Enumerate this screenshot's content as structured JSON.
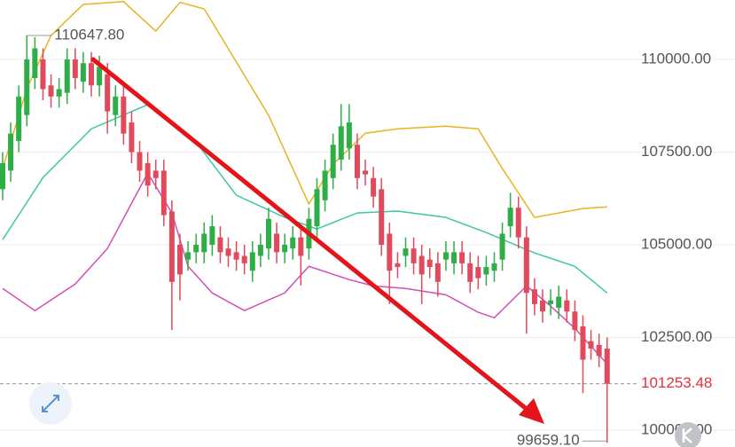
{
  "chart_data": {
    "type": "candlestick",
    "up_color": "#2fae47",
    "down_color": "#e04a5c",
    "ylim": [
      99545,
      111604
    ],
    "yticks": [
      {
        "value": 110000,
        "label": "110000.00"
      },
      {
        "value": 107500,
        "label": "107500.00"
      },
      {
        "value": 105000,
        "label": "105000.00"
      },
      {
        "value": 102500,
        "label": "102500.00"
      },
      {
        "value": 100000,
        "label": "100000.00"
      }
    ],
    "grid": true,
    "open": [
      106500,
      107000,
      107800,
      108500,
      109500,
      110000,
      109300,
      109000,
      109100,
      110000,
      109400,
      109900,
      109300,
      109600,
      108500,
      109000,
      108300,
      107500,
      107200,
      107000,
      107000,
      105900,
      105000,
      104600,
      104800,
      104800,
      105000,
      105200,
      104900,
      104800,
      104700,
      104300,
      104700,
      104900,
      105300,
      104800,
      104900,
      105200,
      104900,
      105500,
      106200,
      106800,
      107300,
      107600,
      107700,
      107000,
      106800,
      106500,
      105300,
      104500,
      104700,
      104900,
      104700,
      104600,
      104500,
      104600,
      104500,
      104800,
      104500,
      104400,
      104200,
      104300,
      104600,
      105500,
      106000,
      105200,
      103800,
      103500,
      103400,
      103300,
      103500,
      103200,
      102800,
      102400,
      102300,
      102200
    ],
    "high": [
      107500,
      108300,
      109300,
      110647.8,
      110600,
      110300,
      109600,
      109500,
      110300,
      110300,
      110200,
      110200,
      110100,
      109900,
      109300,
      109300,
      108600,
      107800,
      107500,
      107300,
      107300,
      106200,
      105300,
      105100,
      105300,
      105600,
      105800,
      105500,
      105200,
      105100,
      105000,
      105100,
      105300,
      106000,
      105600,
      105300,
      105500,
      105500,
      106000,
      106800,
      107300,
      108000,
      108800,
      108800,
      108000,
      107300,
      107100,
      106800,
      105600,
      104800,
      105200,
      105200,
      105000,
      104900,
      104800,
      105100,
      105100,
      105100,
      104800,
      104700,
      104700,
      104800,
      105600,
      106400,
      106300,
      105500,
      104100,
      103800,
      103800,
      103900,
      103800,
      103500,
      103100,
      102700,
      102600,
      102500
    ],
    "low": [
      106200,
      106700,
      107500,
      108200,
      109200,
      108900,
      108700,
      108700,
      108800,
      109200,
      109100,
      109000,
      109000,
      108000,
      108200,
      107700,
      107200,
      106700,
      106300,
      106500,
      105500,
      102700,
      103500,
      104300,
      104500,
      104500,
      104700,
      104500,
      104400,
      104300,
      104200,
      104000,
      104400,
      104600,
      104500,
      104500,
      104600,
      103900,
      104600,
      105200,
      105900,
      106500,
      107000,
      107300,
      106500,
      106600,
      106000,
      104700,
      103400,
      104100,
      104400,
      104200,
      103400,
      104100,
      103600,
      104300,
      104200,
      104200,
      103700,
      103800,
      103900,
      104000,
      104300,
      105200,
      104900,
      102600,
      103100,
      102900,
      103100,
      103000,
      102900,
      102400,
      101000,
      101900,
      101700,
      99659.1
    ],
    "close": [
      107200,
      108000,
      109000,
      110000,
      110300,
      109200,
      109000,
      109200,
      110000,
      109500,
      109900,
      109300,
      109800,
      108600,
      109000,
      108000,
      107500,
      107000,
      106600,
      106800,
      105800,
      104000,
      104200,
      104800,
      105000,
      105300,
      105500,
      104800,
      104700,
      104600,
      104500,
      104800,
      105000,
      105700,
      104800,
      105000,
      105200,
      104700,
      105700,
      106500,
      107000,
      107700,
      108200,
      108300,
      106800,
      106900,
      106300,
      105000,
      104300,
      104400,
      104900,
      104500,
      104200,
      104400,
      104000,
      104800,
      104800,
      104500,
      104000,
      104100,
      104400,
      104500,
      105300,
      106000,
      105200,
      103700,
      103400,
      103200,
      103500,
      103600,
      103200,
      102700,
      101900,
      102200,
      102000,
      101253.48
    ],
    "bands": [
      {
        "color": "#e6b422",
        "x": [
          0,
          3,
          6,
          10,
          15,
          19,
          22,
          25,
          29,
          33,
          36,
          38,
          41,
          45,
          49,
          55,
          59,
          62,
          66,
          69,
          72,
          75
        ],
        "values": [
          107055,
          109210,
          110645,
          111485,
          111560,
          110765,
          111540,
          111365,
          109930,
          108490,
          107055,
          106100,
          107175,
          108010,
          108130,
          108200,
          108130,
          107055,
          105740,
          105860,
          105980,
          106025
        ]
      },
      {
        "color": "#3dc7a6",
        "x": [
          0,
          5,
          11,
          18,
          24,
          29,
          35,
          39,
          44,
          49,
          55,
          60,
          66,
          71,
          75
        ],
        "values": [
          105140,
          106815,
          108130,
          108780,
          107770,
          106335,
          105740,
          105425,
          105860,
          105910,
          105740,
          105330,
          104780,
          104420,
          103700
        ]
      },
      {
        "color": "#d24fb4",
        "x": [
          0,
          4,
          9,
          13,
          18,
          21,
          23,
          26,
          30,
          35,
          38,
          43,
          46,
          50,
          55,
          59,
          61,
          65,
          68,
          71,
          75
        ],
        "values": [
          103820,
          103225,
          103940,
          104900,
          106935,
          105860,
          104420,
          103700,
          103225,
          103700,
          104420,
          104060,
          103890,
          103820,
          103650,
          103180,
          103030,
          103890,
          103345,
          102745,
          101785
        ]
      }
    ],
    "annotations": {
      "max": {
        "value": 110647.8,
        "label": "110647.80"
      },
      "min": {
        "value": 99659.1,
        "label": "99659.10"
      },
      "last": 101253.48
    },
    "last_color": "#e5303a"
  }
}
